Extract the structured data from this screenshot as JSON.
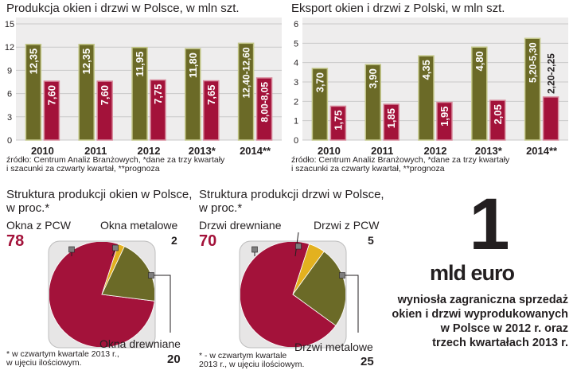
{
  "colors": {
    "olive": "#6b6a27",
    "olive_edge": "#c4c88a",
    "red": "#a3123a",
    "red_edge": "#d88a9c",
    "panel": "#eeeded",
    "grid": "#c9c9c9",
    "pie_bg": "#e7e6e6",
    "yellow": "#e3b11f",
    "big": "#a3123a"
  },
  "chart_data": [
    {
      "type": "bar",
      "title": "Produkcja okien i drzwi w Polsce, w mln szt.",
      "categories": [
        "2010",
        "2011",
        "2012",
        "2013*",
        "2014**"
      ],
      "ylim": [
        0,
        15
      ],
      "yticks": [
        0,
        3,
        6,
        9,
        12,
        15
      ],
      "series": [
        {
          "values": [
            12.35,
            12.35,
            11.95,
            11.8,
            12.5
          ],
          "labels": [
            "12,35",
            "12,35",
            "11,95",
            "11,80",
            "12,40-12,60"
          ],
          "color": "olive"
        },
        {
          "values": [
            7.6,
            7.6,
            7.75,
            7.65,
            8.025
          ],
          "labels": [
            "7,60",
            "7,60",
            "7,75",
            "7,65",
            "8,00-8,05"
          ],
          "color": "red"
        }
      ],
      "source": [
        "źródło: Centrum Analiz Branżowych, *dane za trzy kwartały",
        "i szacunki za czwarty kwartał, **prognoza"
      ]
    },
    {
      "type": "bar",
      "title": "Eksport okien i drzwi z Polski, w mln szt.",
      "categories": [
        "2010",
        "2011",
        "2012",
        "2013*",
        "2014**"
      ],
      "ylim": [
        0,
        6
      ],
      "yticks": [
        0,
        1,
        2,
        3,
        4,
        5,
        6
      ],
      "series": [
        {
          "values": [
            3.7,
            3.9,
            4.35,
            4.8,
            5.25
          ],
          "labels": [
            "3,70",
            "3,90",
            "4,35",
            "4,80",
            "5,20-5,30"
          ],
          "color": "olive"
        },
        {
          "values": [
            1.75,
            1.85,
            1.95,
            2.05,
            2.225
          ],
          "labels": [
            "1,75",
            "1,85",
            "1,95",
            "2,05",
            "2,20-2,25"
          ],
          "color": "red"
        }
      ],
      "source": [
        "źródło: Centrum Analiz Branżowych, *dane za trzy kwartały",
        "i szacunki za czwarty kwartał, **prognoza"
      ]
    },
    {
      "type": "pie",
      "title": [
        "Struktura produkcji okien w Polsce,",
        "w proc.*"
      ],
      "slices": [
        {
          "label": "Okna z PCW",
          "value": 78,
          "color": "red"
        },
        {
          "label": "Okna metalowe",
          "value": 2,
          "color": "yellow"
        },
        {
          "label": "Okna drewniane",
          "value": 20,
          "color": "olive"
        }
      ],
      "footnote": [
        "* w czwartym kwartale 2013 r.,",
        "w ujęciu ilościowym."
      ]
    },
    {
      "type": "pie",
      "title": [
        "Struktura produkcji drzwi w Polsce,",
        "w proc.*"
      ],
      "slices": [
        {
          "label": "Drzwi drewniane",
          "value": 70,
          "color": "red"
        },
        {
          "label": "Drzwi z PCW",
          "value": 5,
          "color": "yellow"
        },
        {
          "label": "Drzwi metalowe",
          "value": 25,
          "color": "olive"
        }
      ],
      "footnote": [
        "* - w czwartym kwartale",
        "2013 r., w ujęciu ilościowym."
      ]
    }
  ],
  "highlight": {
    "number": "1",
    "unit": "mld euro",
    "text": [
      "wyniosła zagraniczna sprzedaż",
      "okien i drzwi wyprodukowanych",
      "w Polsce w 2012 r. oraz",
      "trzech kwartałach 2013 r."
    ]
  }
}
